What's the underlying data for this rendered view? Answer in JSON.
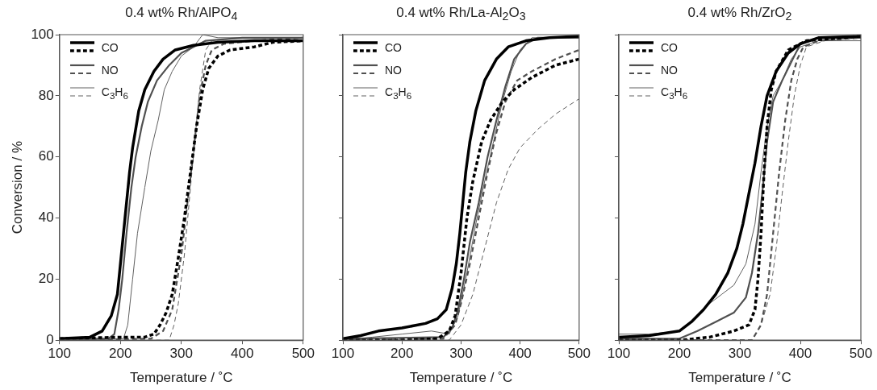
{
  "chart_data": [
    {
      "type": "line",
      "title": "0.4 wt% Rh/AlPO$_{4}$",
      "xlabel": "Temperature / ˚C",
      "ylabel": "Conversion / %",
      "xlim": [
        100,
        500
      ],
      "ylim": [
        0,
        100
      ],
      "xticks": [
        100,
        200,
        300,
        400,
        500
      ],
      "yticks": [
        0,
        20,
        40,
        60,
        80,
        100
      ],
      "grid": false,
      "legend": "top left",
      "marker": "none",
      "series": [
        {
          "name": "CO",
          "color": "#000000",
          "line_style": "solid",
          "x": [
            100,
            150,
            170,
            185,
            195,
            200,
            205,
            210,
            215,
            220,
            230,
            240,
            255,
            270,
            290,
            320,
            360,
            420,
            500
          ],
          "values": [
            0.5,
            1,
            3,
            8,
            15,
            25,
            35,
            45,
            55,
            63,
            75,
            82,
            88,
            92,
            95,
            96.5,
            97.5,
            98,
            98
          ]
        },
        {
          "color": "#000000",
          "line_style": "dashed",
          "x": [
            100,
            200,
            240,
            255,
            265,
            275,
            285,
            295,
            305,
            315,
            325,
            335,
            345,
            360,
            380,
            420,
            450,
            500
          ],
          "values": [
            0.5,
            1,
            1,
            2,
            5,
            9,
            15,
            27,
            40,
            55,
            70,
            82,
            89,
            93,
            95,
            96,
            97.5,
            98
          ]
        },
        {
          "name": "NO",
          "color": "#505050",
          "line_style": "solid",
          "x": [
            100,
            180,
            190,
            197,
            203,
            210,
            218,
            225,
            235,
            245,
            260,
            280,
            300,
            320,
            340,
            400,
            500
          ],
          "values": [
            0.5,
            0.5,
            2,
            10,
            20,
            35,
            50,
            60,
            70,
            78,
            85,
            90,
            94,
            96,
            98,
            99,
            99
          ]
        },
        {
          "color": "#505050",
          "line_style": "dashed",
          "x": [
            100,
            250,
            270,
            285,
            300,
            310,
            320,
            330,
            340,
            350,
            370,
            420,
            500
          ],
          "values": [
            0,
            0.5,
            3,
            10,
            28,
            45,
            62,
            80,
            90,
            95,
            97,
            98,
            99
          ]
        },
        {
          "name": "C$_{3}$H$_{6}$",
          "color": "#606060",
          "line_style": "solid",
          "x": [
            100,
            205,
            212,
            220,
            228,
            240,
            250,
            262,
            272,
            285,
            300,
            320,
            335,
            360,
            500
          ],
          "values": [
            0,
            0.5,
            5,
            20,
            35,
            50,
            62,
            72,
            82,
            88,
            93,
            96,
            100,
            99,
            99
          ]
        },
        {
          "color": "#606060",
          "line_style": "dashed",
          "x": [
            100,
            280,
            288,
            295,
            305,
            315,
            322,
            330,
            340,
            350,
            400,
            500
          ],
          "values": [
            0,
            0,
            5,
            12,
            28,
            50,
            65,
            82,
            95,
            98,
            99,
            99
          ]
        }
      ]
    },
    {
      "type": "line",
      "title": "0.4 wt% Rh/La-Al$_{2}$O$_{3}$",
      "xlabel": "Temperature / ˚C",
      "xlim": [
        100,
        500
      ],
      "ylim": [
        0,
        100
      ],
      "xticks": [
        100,
        200,
        300,
        400,
        500
      ],
      "yticks": [
        0,
        20,
        40,
        60,
        80,
        100
      ],
      "tick_labels": "x",
      "grid": false,
      "legend": "top left",
      "marker": "none",
      "series": [
        {
          "name": "CO",
          "color": "#000000",
          "line_style": "solid",
          "x": [
            100,
            130,
            160,
            200,
            240,
            260,
            275,
            285,
            292,
            298,
            303,
            308,
            315,
            325,
            340,
            360,
            380,
            410,
            450,
            500
          ],
          "values": [
            0.5,
            1.5,
            3,
            4,
            5.5,
            7,
            10,
            17,
            25,
            35,
            45,
            55,
            65,
            75,
            85,
            92,
            96,
            98,
            99,
            99.5
          ]
        },
        {
          "color": "#000000",
          "line_style": "dashed",
          "x": [
            100,
            200,
            260,
            280,
            290,
            300,
            310,
            320,
            335,
            350,
            370,
            390,
            420,
            460,
            500
          ],
          "values": [
            0,
            0,
            0.5,
            3,
            8,
            22,
            40,
            52,
            65,
            72,
            78,
            82,
            86,
            90,
            92
          ]
        },
        {
          "name": "NO",
          "color": "#505050",
          "line_style": "solid",
          "x": [
            100,
            270,
            285,
            295,
            305,
            315,
            330,
            345,
            360,
            375,
            390,
            410,
            430,
            500
          ],
          "values": [
            0.5,
            1,
            4,
            10,
            20,
            32,
            45,
            60,
            72,
            83,
            92,
            97,
            99,
            99
          ]
        },
        {
          "color": "#505050",
          "line_style": "dashed",
          "x": [
            100,
            270,
            290,
            300,
            315,
            330,
            345,
            360,
            375,
            395,
            420,
            460,
            500
          ],
          "values": [
            0,
            0.5,
            5,
            12,
            25,
            40,
            55,
            68,
            78,
            85,
            88,
            92,
            95
          ]
        },
        {
          "name": "C$_{3}$H$_{6}$",
          "color": "#606060",
          "line_style": "solid",
          "x": [
            100,
            150,
            200,
            250,
            280,
            295,
            310,
            325,
            340,
            355,
            370,
            385,
            400,
            420,
            500
          ],
          "values": [
            0,
            1,
            2,
            3,
            2,
            8,
            22,
            38,
            52,
            65,
            78,
            88,
            95,
            99,
            99
          ]
        },
        {
          "color": "#606060",
          "line_style": "dashed",
          "x": [
            100,
            280,
            300,
            320,
            340,
            360,
            380,
            400,
            430,
            460,
            500
          ],
          "values": [
            0,
            0,
            5,
            15,
            30,
            45,
            56,
            63,
            69,
            74,
            79
          ]
        }
      ]
    },
    {
      "type": "line",
      "title": "0.4 wt% Rh/ZrO$_{2}$",
      "xlabel": "Temperature / ˚C",
      "xlim": [
        100,
        500
      ],
      "ylim": [
        0,
        100
      ],
      "xticks": [
        100,
        200,
        300,
        400,
        500
      ],
      "yticks": [
        0,
        20,
        40,
        60,
        80,
        100
      ],
      "tick_labels": "x",
      "grid": false,
      "legend": "top left",
      "marker": "none",
      "series": [
        {
          "name": "CO",
          "color": "#000000",
          "line_style": "solid",
          "x": [
            100,
            150,
            200,
            220,
            240,
            260,
            280,
            295,
            305,
            315,
            325,
            335,
            345,
            360,
            380,
            400,
            430,
            500
          ],
          "values": [
            1,
            1.5,
            3,
            6,
            10,
            15,
            22,
            30,
            38,
            48,
            58,
            70,
            80,
            88,
            94,
            97,
            99,
            99.5
          ]
        },
        {
          "color": "#000000",
          "line_style": "dashed",
          "x": [
            100,
            200,
            250,
            290,
            315,
            325,
            330,
            335,
            340,
            345,
            352,
            360,
            380,
            410,
            500
          ],
          "values": [
            0,
            0,
            1,
            3,
            5,
            10,
            20,
            35,
            55,
            70,
            82,
            88,
            95,
            98,
            99.5
          ]
        },
        {
          "name": "NO",
          "color": "#505050",
          "line_style": "solid",
          "x": [
            100,
            200,
            230,
            260,
            290,
            310,
            320,
            330,
            338,
            345,
            355,
            370,
            385,
            400,
            430,
            500
          ],
          "values": [
            0.5,
            0.5,
            3,
            6,
            9,
            14,
            22,
            35,
            50,
            65,
            78,
            85,
            91,
            97,
            99,
            99
          ]
        },
        {
          "color": "#505050",
          "line_style": "dashed",
          "x": [
            100,
            320,
            335,
            345,
            355,
            365,
            375,
            385,
            395,
            405,
            430,
            500
          ],
          "values": [
            0,
            0,
            5,
            15,
            35,
            55,
            72,
            85,
            92,
            96,
            98,
            99
          ]
        },
        {
          "name": "C$_{3}$H$_{6}$",
          "color": "#606060",
          "line_style": "solid",
          "x": [
            100,
            150,
            200,
            230,
            250,
            270,
            290,
            310,
            325,
            335,
            345,
            355,
            370,
            385,
            400,
            430,
            500
          ],
          "values": [
            2,
            2,
            3,
            8,
            12,
            15,
            18,
            25,
            38,
            55,
            70,
            80,
            85,
            92,
            96,
            98,
            98
          ]
        },
        {
          "color": "#606060",
          "line_style": "dashed",
          "x": [
            100,
            320,
            335,
            350,
            360,
            370,
            380,
            390,
            400,
            410,
            440,
            500
          ],
          "values": [
            0,
            0,
            5,
            15,
            30,
            48,
            65,
            80,
            90,
            96,
            98,
            99
          ]
        }
      ]
    }
  ]
}
